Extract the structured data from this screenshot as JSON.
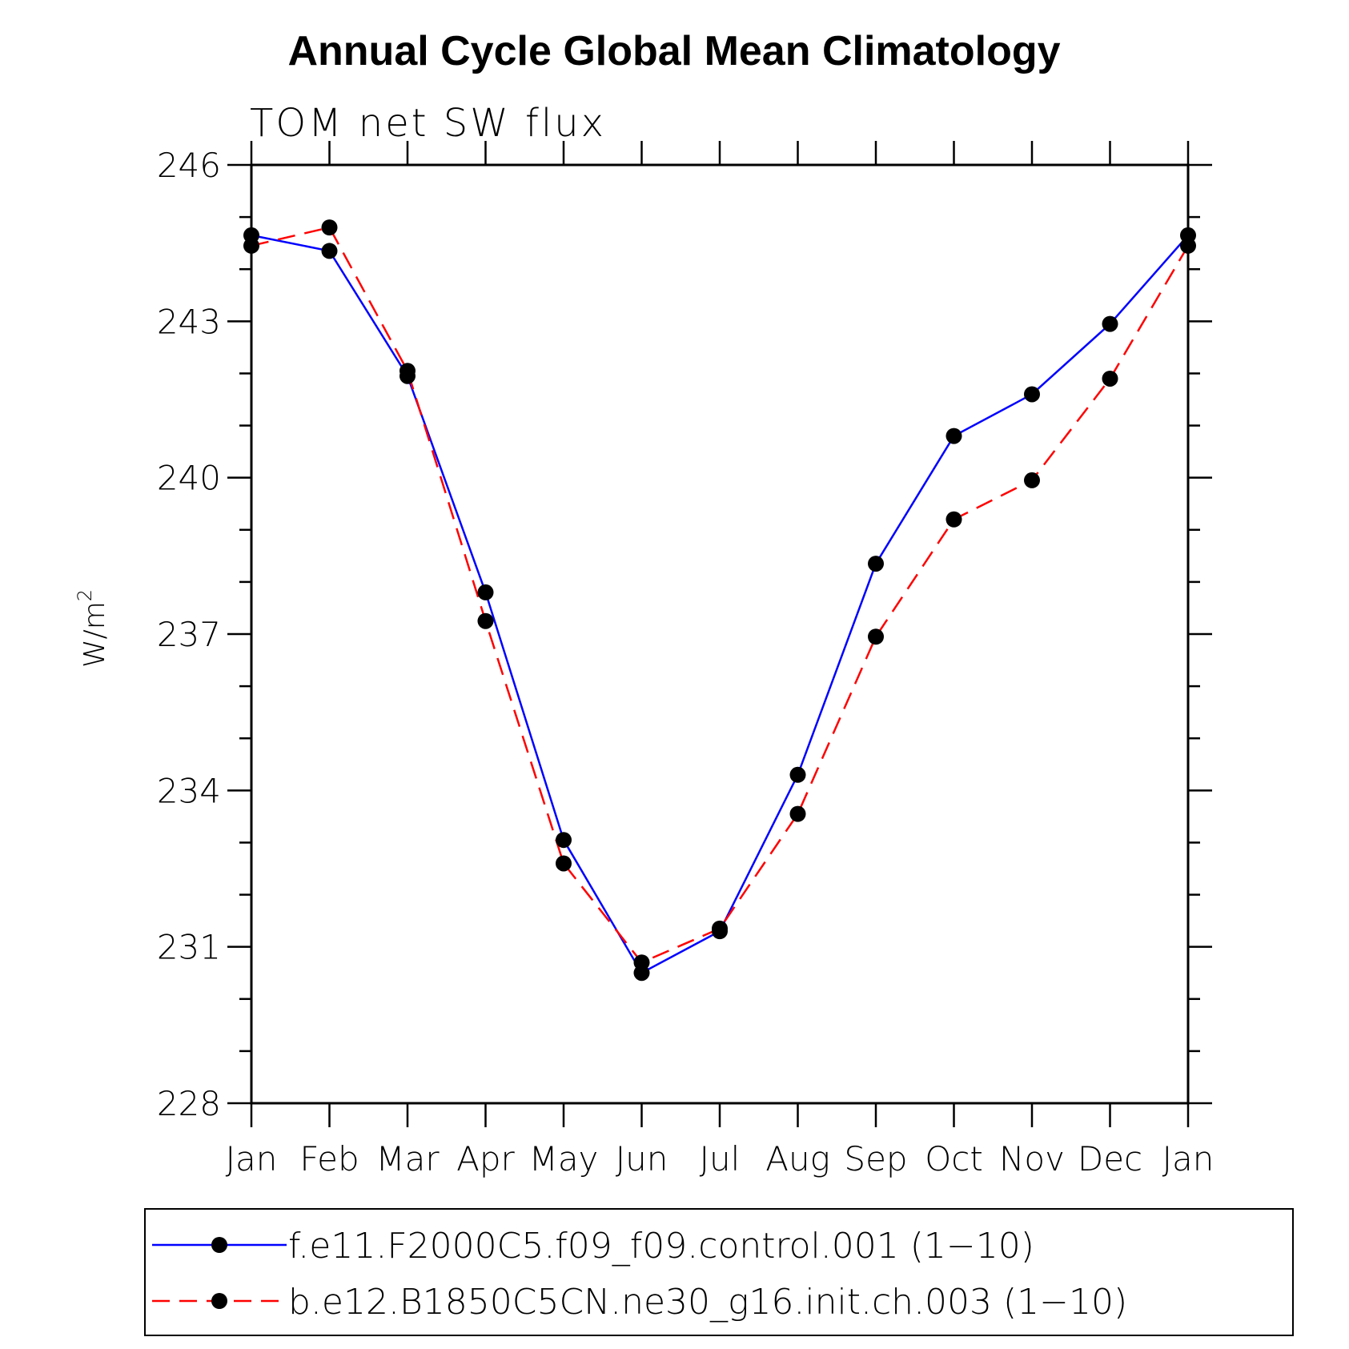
{
  "chart_data": {
    "type": "line",
    "title": "Annual Cycle Global Mean Climatology",
    "subtitle": "TOM net SW flux",
    "ylabel": "W/m",
    "ylabel_sup": "2",
    "xlabel": "",
    "categories": [
      "Jan",
      "Feb",
      "Mar",
      "Apr",
      "May",
      "Jun",
      "Jul",
      "Aug",
      "Sep",
      "Oct",
      "Nov",
      "Dec",
      "Jan"
    ],
    "ylim": [
      228,
      246
    ],
    "yticks": [
      "228",
      "231",
      "234",
      "237",
      "240",
      "243",
      "246"
    ],
    "grid": false,
    "legend_position": "bottom",
    "series": [
      {
        "name": "f.e11.F2000C5.f09_f09.control.001 (1−10)",
        "color": "#0000ff",
        "dash": "solid",
        "marker": "filled-circle",
        "values": [
          244.65,
          244.35,
          241.95,
          237.8,
          233.05,
          230.5,
          231.3,
          234.3,
          238.35,
          240.8,
          241.6,
          242.95,
          244.65
        ]
      },
      {
        "name": "b.e12.B1850C5CN.ne30_g16.init.ch.003 (1−10)",
        "color": "#ff0000",
        "dash": "dashed",
        "marker": "filled-circle",
        "values": [
          244.45,
          244.8,
          242.05,
          237.25,
          232.6,
          230.7,
          231.35,
          233.55,
          236.95,
          239.2,
          239.95,
          241.9,
          244.45
        ]
      }
    ]
  }
}
